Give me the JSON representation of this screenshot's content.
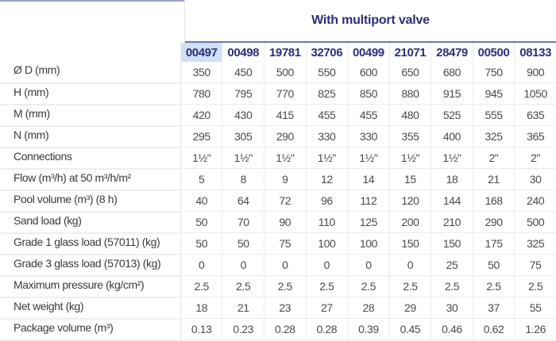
{
  "title": "With multiport valve",
  "selected_code_index": 0,
  "codes": [
    "00497",
    "00498",
    "19781",
    "32706",
    "00499",
    "21071",
    "28479",
    "00500",
    "08133"
  ],
  "rows": [
    {
      "label": "Ø D (mm)",
      "values": [
        "350",
        "450",
        "500",
        "550",
        "600",
        "650",
        "680",
        "750",
        "900"
      ]
    },
    {
      "label": "H (mm)",
      "values": [
        "780",
        "795",
        "770",
        "825",
        "850",
        "880",
        "915",
        "945",
        "1050"
      ]
    },
    {
      "label": "M (mm)",
      "values": [
        "420",
        "430",
        "415",
        "455",
        "455",
        "480",
        "525",
        "555",
        "635"
      ]
    },
    {
      "label": "N (mm)",
      "values": [
        "295",
        "305",
        "290",
        "330",
        "330",
        "355",
        "400",
        "325",
        "365"
      ]
    },
    {
      "label": "Connections",
      "values": [
        "1½\"",
        "1½\"",
        "1½\"",
        "1½\"",
        "1½\"",
        "1½\"",
        "1½\"",
        "2\"",
        "2\""
      ]
    },
    {
      "label": "Flow (m³/h) at 50 m³/h/m²",
      "values": [
        "5",
        "8",
        "9",
        "12",
        "14",
        "15",
        "18",
        "21",
        "30"
      ]
    },
    {
      "label": "Pool volume (m³) (8 h)",
      "values": [
        "40",
        "64",
        "72",
        "96",
        "112",
        "120",
        "144",
        "168",
        "240"
      ]
    },
    {
      "label": "Sand load (kg)",
      "values": [
        "50",
        "70",
        "90",
        "110",
        "125",
        "200",
        "210",
        "290",
        "500"
      ]
    },
    {
      "label": "Grade 1 glass load (57011) (kg)",
      "values": [
        "50",
        "50",
        "75",
        "100",
        "100",
        "150",
        "150",
        "175",
        "325"
      ]
    },
    {
      "label": "Grade 3 glass load (57013) (kg)",
      "values": [
        "0",
        "0",
        "0",
        "0",
        "0",
        "0",
        "25",
        "50",
        "75"
      ]
    },
    {
      "label": "Maximum pressure (kg/cm²)",
      "values": [
        "2.5",
        "2.5",
        "2.5",
        "2.5",
        "2.5",
        "2.5",
        "2.5",
        "2.5",
        "2.5"
      ]
    },
    {
      "label": "Net weight (kg)",
      "values": [
        "18",
        "21",
        "23",
        "27",
        "28",
        "29",
        "30",
        "37",
        "55"
      ]
    },
    {
      "label": "Package volume (m³)",
      "values": [
        "0.13",
        "0.23",
        "0.28",
        "0.28",
        "0.39",
        "0.45",
        "0.46",
        "0.62",
        "1.26"
      ]
    }
  ]
}
